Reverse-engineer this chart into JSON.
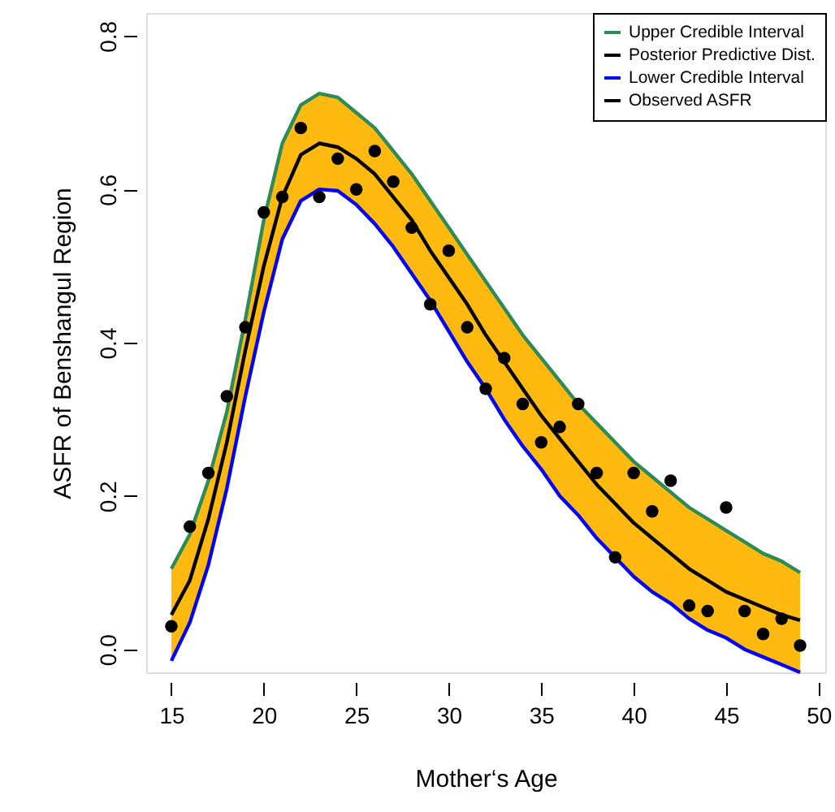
{
  "chart_data": {
    "type": "line",
    "xlabel": "Mother‘s Age",
    "ylabel": "ASFR of Benshangul Region",
    "x": [
      15,
      16,
      17,
      18,
      19,
      20,
      21,
      22,
      23,
      24,
      25,
      26,
      27,
      28,
      29,
      30,
      31,
      32,
      33,
      34,
      35,
      36,
      37,
      38,
      39,
      40,
      41,
      42,
      43,
      44,
      45,
      46,
      47,
      48,
      49
    ],
    "series": [
      {
        "name": "Upper Credible Interval",
        "color": "#2e8b57",
        "values": [
          0.105,
          0.15,
          0.22,
          0.31,
          0.43,
          0.56,
          0.66,
          0.71,
          0.725,
          0.72,
          0.7,
          0.68,
          0.65,
          0.62,
          0.585,
          0.55,
          0.515,
          0.48,
          0.445,
          0.41,
          0.38,
          0.35,
          0.32,
          0.295,
          0.27,
          0.245,
          0.225,
          0.205,
          0.185,
          0.17,
          0.155,
          0.14,
          0.125,
          0.115,
          0.1
        ]
      },
      {
        "name": "Posterior Predictive Dist.",
        "color": "#000000",
        "values": [
          0.045,
          0.09,
          0.17,
          0.27,
          0.39,
          0.5,
          0.59,
          0.645,
          0.66,
          0.655,
          0.64,
          0.62,
          0.59,
          0.56,
          0.52,
          0.485,
          0.45,
          0.41,
          0.375,
          0.34,
          0.305,
          0.275,
          0.245,
          0.215,
          0.19,
          0.165,
          0.145,
          0.125,
          0.105,
          0.09,
          0.075,
          0.065,
          0.055,
          0.045,
          0.038
        ],
        "lower": [
          -0.015,
          0.035,
          0.11,
          0.21,
          0.33,
          0.44,
          0.535,
          0.585,
          0.6,
          0.598,
          0.58,
          0.555,
          0.525,
          0.49,
          0.455,
          0.415,
          0.375,
          0.34,
          0.3,
          0.265,
          0.235,
          0.2,
          0.175,
          0.145,
          0.12,
          0.095,
          0.075,
          0.06,
          0.04,
          0.025,
          0.015,
          0.0,
          -0.01,
          -0.02,
          -0.03
        ],
        "upper": [
          0.105,
          0.15,
          0.22,
          0.31,
          0.43,
          0.56,
          0.66,
          0.71,
          0.725,
          0.72,
          0.7,
          0.68,
          0.65,
          0.62,
          0.585,
          0.55,
          0.515,
          0.48,
          0.445,
          0.41,
          0.38,
          0.35,
          0.32,
          0.295,
          0.27,
          0.245,
          0.225,
          0.205,
          0.185,
          0.17,
          0.155,
          0.14,
          0.125,
          0.115,
          0.1
        ]
      },
      {
        "name": "Lower Credible Interval",
        "color": "#0000ff",
        "values": [
          -0.015,
          0.035,
          0.11,
          0.21,
          0.33,
          0.44,
          0.535,
          0.585,
          0.6,
          0.598,
          0.58,
          0.555,
          0.525,
          0.49,
          0.455,
          0.415,
          0.375,
          0.34,
          0.3,
          0.265,
          0.235,
          0.2,
          0.175,
          0.145,
          0.12,
          0.095,
          0.075,
          0.06,
          0.04,
          0.025,
          0.015,
          0.0,
          -0.01,
          -0.02,
          -0.03
        ]
      },
      {
        "name": "Observed ASFR",
        "type": "scatter",
        "color": "#000000",
        "marker": "circle",
        "values": [
          0.03,
          0.16,
          0.23,
          0.33,
          0.42,
          0.57,
          0.59,
          0.68,
          0.59,
          0.64,
          0.6,
          0.65,
          0.61,
          0.55,
          0.45,
          0.52,
          0.42,
          0.34,
          0.38,
          0.32,
          0.27,
          0.29,
          0.32,
          0.23,
          0.12,
          0.23,
          0.18,
          0.22,
          0.057,
          0.05,
          0.185,
          0.05,
          0.02,
          0.04,
          0.005
        ]
      }
    ],
    "xlim": [
      13.64,
      50.36
    ],
    "xticks": [
      15,
      20,
      25,
      30,
      35,
      40,
      45,
      50
    ],
    "ylim": [
      -0.03,
      0.83
    ],
    "yticks": [
      {
        "value": 0,
        "label": "0.0"
      },
      {
        "value": 0.2,
        "label": "0.2"
      },
      {
        "value": 0.4,
        "label": "0.4"
      },
      {
        "value": 0.6,
        "label": "0.6"
      },
      {
        "value": 0.8,
        "label": "0.8"
      }
    ],
    "grid": false,
    "legend": "top right"
  }
}
